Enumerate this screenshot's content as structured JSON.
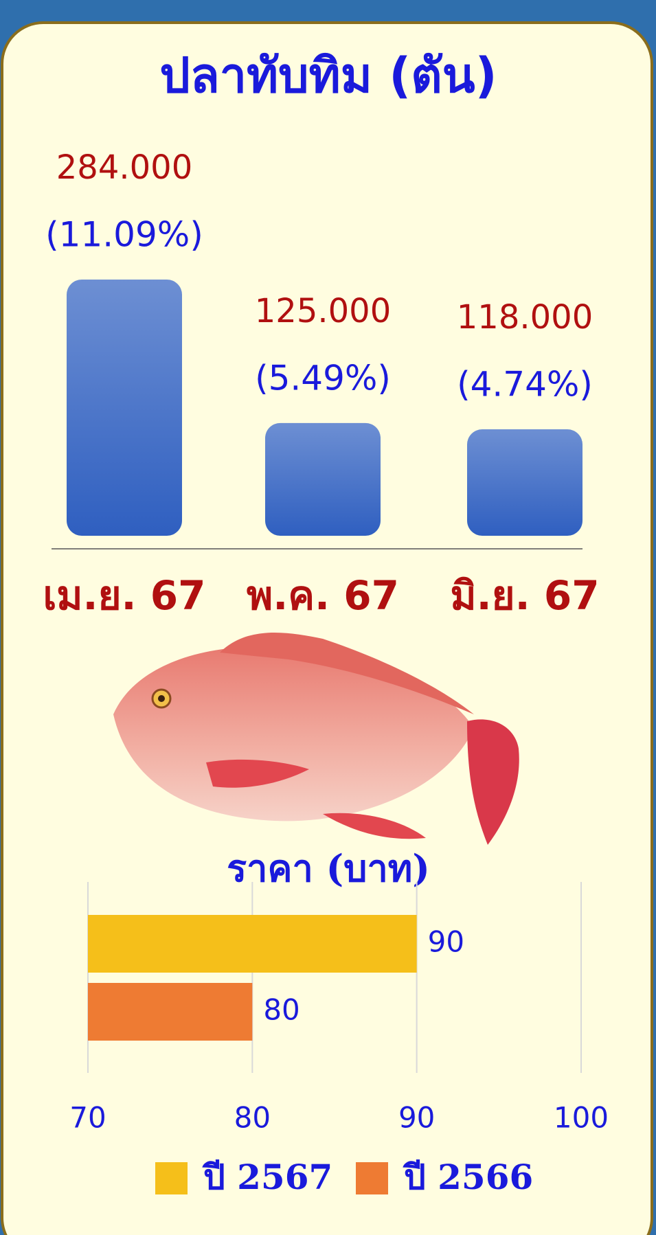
{
  "chart_data": [
    {
      "type": "bar",
      "title": "ปลาทับทิม (ตัน)",
      "categories": [
        "เม.ย. 67",
        "พ.ค. 67",
        "มิ.ย. 67"
      ],
      "values": [
        284,
        125,
        118
      ],
      "value_labels": [
        "284.000",
        "125.000",
        "118.000"
      ],
      "shares": [
        11.09,
        5.49,
        4.74
      ],
      "share_labels": [
        "(11.09%)",
        "(5.49%)",
        "(4.74%)"
      ],
      "color": "#3f6cc9"
    },
    {
      "type": "hbar",
      "title": "ราคา (บาท)",
      "series": [
        {
          "name": "ปี 2567",
          "color": "#f5bf1a",
          "values": [
            90
          ]
        },
        {
          "name": "ปี 2566",
          "color": "#ee7b33",
          "values": [
            80
          ]
        }
      ],
      "xlim": [
        70,
        100
      ],
      "xticks": [
        70,
        80,
        90,
        100
      ],
      "grid": true,
      "legend": "bottom"
    }
  ]
}
